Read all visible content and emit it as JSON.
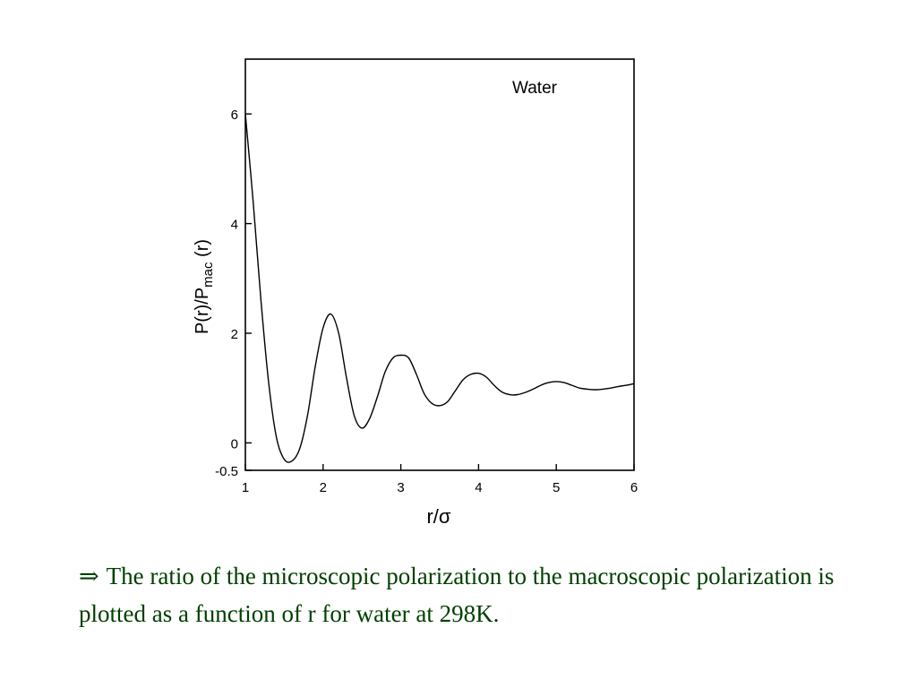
{
  "chart_data": {
    "type": "line",
    "annotation": "Water",
    "xlabel": "r/σ",
    "ylabel": "P(r)/P",
    "ylabel_sub": "mac",
    "ylabel_tail": " (r)",
    "xlim": [
      1,
      6
    ],
    "ylim": [
      -0.5,
      7
    ],
    "x_ticks": [
      1,
      2,
      3,
      4,
      5,
      6
    ],
    "x_tick_labels": [
      "1",
      "2",
      "3",
      "4",
      "5",
      "6"
    ],
    "y_ticks": [
      -0.5,
      0,
      2,
      4,
      6
    ],
    "y_tick_labels": [
      "-0.5",
      "0",
      "2",
      "4",
      "6"
    ],
    "grid": false,
    "series": [
      {
        "color": "#000000",
        "x": [
          1.0,
          1.1,
          1.2,
          1.3,
          1.4,
          1.5,
          1.6,
          1.7,
          1.8,
          1.9,
          2.0,
          2.1,
          2.2,
          2.3,
          2.4,
          2.5,
          2.6,
          2.7,
          2.8,
          2.9,
          3.0,
          3.1,
          3.2,
          3.3,
          3.4,
          3.5,
          3.6,
          3.7,
          3.8,
          3.9,
          4.0,
          4.1,
          4.2,
          4.3,
          4.4,
          4.5,
          4.6,
          4.7,
          4.8,
          4.9,
          5.0,
          5.1,
          5.2,
          5.3,
          5.4,
          5.5,
          5.6,
          5.7,
          5.8,
          5.9,
          6.0
        ],
        "y": [
          6.0,
          4.4,
          2.6,
          1.1,
          0.1,
          -0.3,
          -0.33,
          -0.1,
          0.5,
          1.4,
          2.1,
          2.35,
          2.0,
          1.2,
          0.5,
          0.27,
          0.45,
          0.85,
          1.3,
          1.55,
          1.6,
          1.55,
          1.25,
          0.9,
          0.72,
          0.68,
          0.75,
          0.95,
          1.15,
          1.25,
          1.27,
          1.2,
          1.05,
          0.93,
          0.88,
          0.88,
          0.92,
          0.98,
          1.05,
          1.1,
          1.12,
          1.1,
          1.05,
          1.0,
          0.98,
          0.97,
          0.98,
          1.0,
          1.03,
          1.05,
          1.08
        ]
      }
    ]
  },
  "caption": {
    "arrow": "⇒",
    "text": "The ratio of the microscopic polarization to the macroscopic polarization is plotted as a function of r for water at 298K."
  }
}
